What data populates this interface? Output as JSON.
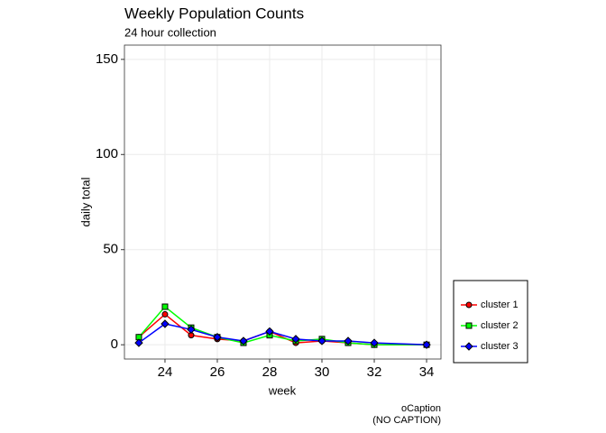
{
  "chart_data": {
    "type": "line",
    "title": "Weekly Population Counts",
    "subtitle": "24 hour collection",
    "x_label": "week",
    "y_label": "daily total",
    "caption": [
      "oCaption",
      "(NO CAPTION)"
    ],
    "x": [
      23,
      24,
      25,
      26,
      27,
      28,
      29,
      30,
      31,
      32,
      34
    ],
    "series": [
      {
        "name": "cluster 1",
        "color": "#ff0000",
        "marker": "circle",
        "values": [
          4,
          16,
          5,
          3,
          2,
          7,
          1,
          2,
          1,
          0,
          0
        ]
      },
      {
        "name": "cluster 2",
        "color": "#00ff00",
        "marker": "square",
        "values": [
          4,
          20,
          9,
          4,
          1,
          5,
          2,
          3,
          1,
          0,
          0
        ]
      },
      {
        "name": "cluster 3",
        "color": "#0000ff",
        "marker": "diamond",
        "values": [
          1,
          11,
          8,
          4,
          2,
          7,
          3,
          2,
          2,
          1,
          0
        ]
      }
    ],
    "xlim": [
      22.45,
      34.55
    ],
    "ylim": [
      -7.5,
      157.5
    ],
    "xticks": [
      24,
      26,
      28,
      30,
      32,
      34
    ],
    "yticks": [
      0,
      50,
      100,
      150
    ],
    "grid": true,
    "legend": "right"
  }
}
